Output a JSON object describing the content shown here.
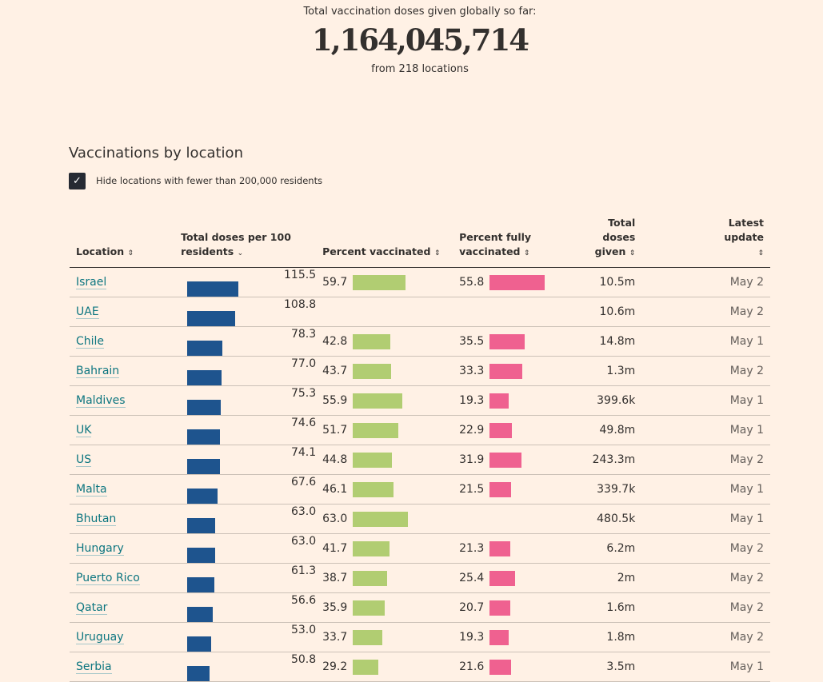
{
  "header": {
    "lead": "Total vaccination doses given globally so far:",
    "total": "1,164,045,714",
    "from": "from 218 locations"
  },
  "section": {
    "title": "Vaccinations by location",
    "checkbox_label": "Hide locations with fewer than 200,000 residents",
    "checkbox_checked": true
  },
  "columns": {
    "location": "Location",
    "doses_per_100": "Total doses per 100 residents",
    "pct_vaccinated": "Percent vaccinated",
    "pct_fully": "Percent fully vaccinated",
    "total_doses": "Total doses given",
    "latest": "Latest update"
  },
  "icons": {
    "sort": "sort-icon",
    "sorted_desc": "chevron-down-icon",
    "check": "check-icon"
  },
  "colors": {
    "background": "#fff1e5",
    "doses_bar": "#1e548e",
    "vaccinated_bar": "#b1cd72",
    "fully_bar": "#ef6190",
    "link": "#0d7680"
  },
  "rows": [
    {
      "location": "Israel",
      "doses_per_100": "115.5",
      "pct_vaccinated": "59.7",
      "pct_fully": "55.8",
      "total": "10.5m",
      "updated": "May 2"
    },
    {
      "location": "UAE",
      "doses_per_100": "108.8",
      "pct_vaccinated": "",
      "pct_fully": "",
      "total": "10.6m",
      "updated": "May 2"
    },
    {
      "location": "Chile",
      "doses_per_100": "78.3",
      "pct_vaccinated": "42.8",
      "pct_fully": "35.5",
      "total": "14.8m",
      "updated": "May 1"
    },
    {
      "location": "Bahrain",
      "doses_per_100": "77.0",
      "pct_vaccinated": "43.7",
      "pct_fully": "33.3",
      "total": "1.3m",
      "updated": "May 2"
    },
    {
      "location": "Maldives",
      "doses_per_100": "75.3",
      "pct_vaccinated": "55.9",
      "pct_fully": "19.3",
      "total": "399.6k",
      "updated": "May 1"
    },
    {
      "location": "UK",
      "doses_per_100": "74.6",
      "pct_vaccinated": "51.7",
      "pct_fully": "22.9",
      "total": "49.8m",
      "updated": "May 1"
    },
    {
      "location": "US",
      "doses_per_100": "74.1",
      "pct_vaccinated": "44.8",
      "pct_fully": "31.9",
      "total": "243.3m",
      "updated": "May 2"
    },
    {
      "location": "Malta",
      "doses_per_100": "67.6",
      "pct_vaccinated": "46.1",
      "pct_fully": "21.5",
      "total": "339.7k",
      "updated": "May 1"
    },
    {
      "location": "Bhutan",
      "doses_per_100": "63.0",
      "pct_vaccinated": "63.0",
      "pct_fully": "",
      "total": "480.5k",
      "updated": "May 1"
    },
    {
      "location": "Hungary",
      "doses_per_100": "63.0",
      "pct_vaccinated": "41.7",
      "pct_fully": "21.3",
      "total": "6.2m",
      "updated": "May 2"
    },
    {
      "location": "Puerto Rico",
      "doses_per_100": "61.3",
      "pct_vaccinated": "38.7",
      "pct_fully": "25.4",
      "total": "2m",
      "updated": "May 2"
    },
    {
      "location": "Qatar",
      "doses_per_100": "56.6",
      "pct_vaccinated": "35.9",
      "pct_fully": "20.7",
      "total": "1.6m",
      "updated": "May 2"
    },
    {
      "location": "Uruguay",
      "doses_per_100": "53.0",
      "pct_vaccinated": "33.7",
      "pct_fully": "19.3",
      "total": "1.8m",
      "updated": "May 2"
    },
    {
      "location": "Serbia",
      "doses_per_100": "50.8",
      "pct_vaccinated": "29.2",
      "pct_fully": "21.6",
      "total": "3.5m",
      "updated": "May 1"
    }
  ]
}
